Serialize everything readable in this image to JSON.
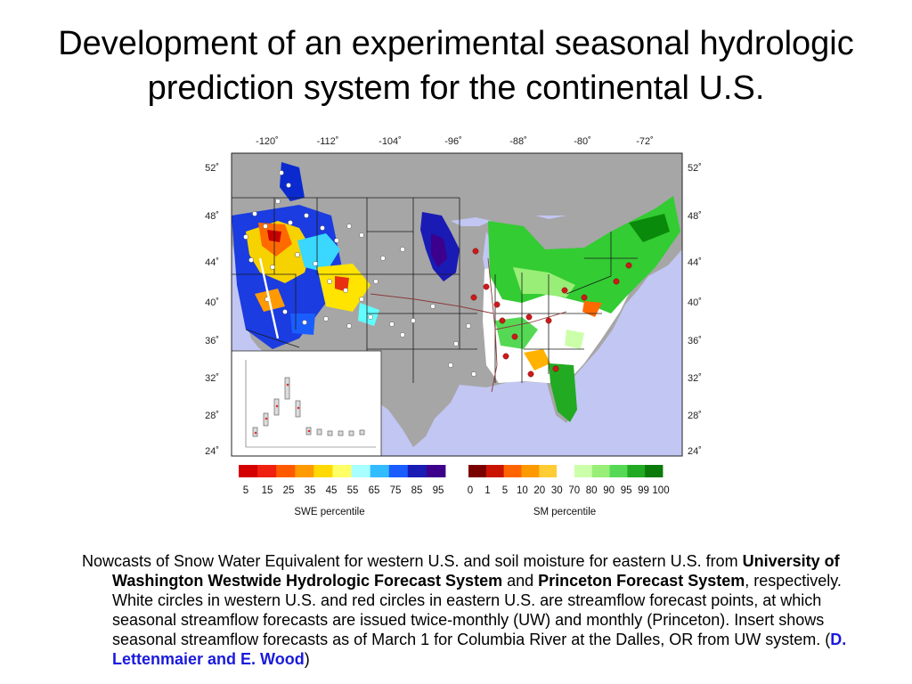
{
  "slide": {
    "title_line1": "Development of an experimental seasonal hydrologic",
    "title_line2": "prediction system for the continental U.S."
  },
  "map": {
    "lon_labels": [
      "-120˚",
      "-112˚",
      "-104˚",
      "-96˚",
      "-88˚",
      "-80˚",
      "-72˚"
    ],
    "lat_labels": [
      "52˚",
      "48˚",
      "44˚",
      "40˚",
      "36˚",
      "32˚",
      "28˚",
      "24˚"
    ],
    "colors": {
      "land_gray": "#a6a6a6",
      "ocean": "#c2c6f2",
      "western_red_circle": "#cc1a1a",
      "forecast_point_white": "#ffffff"
    }
  },
  "legends": {
    "swe": {
      "title": "SWE percentile",
      "ticks": [
        "5",
        "15",
        "25",
        "35",
        "45",
        "55",
        "65",
        "75",
        "85",
        "95"
      ],
      "colors": [
        "#d40000",
        "#f02010",
        "#ff5a00",
        "#ff9a00",
        "#ffd900",
        "#ffff66",
        "#a8ffff",
        "#33bbff",
        "#1a5dff",
        "#1a1ab4",
        "#3c008c"
      ]
    },
    "sm": {
      "title": "SM percentile",
      "ticks": [
        "0",
        "1",
        "5",
        "10",
        "20",
        "30",
        "70",
        "80",
        "90",
        "95",
        "99",
        "100"
      ],
      "colors": [
        "#7a0000",
        "#c81400",
        "#ff6400",
        "#ff9900",
        "#ffcc33",
        "#ffffff",
        "#ccffaa",
        "#99ee77",
        "#55d955",
        "#22aa22",
        "#0a7a0a"
      ]
    }
  },
  "caption": {
    "part1": "Nowcasts of Snow Water Equivalent for western U.S. and soil moisture for eastern U.S. from ",
    "bold1": "University of Washington Westwide Hydrologic Forecast System",
    "part2": " and ",
    "bold2": "Princeton Forecast System",
    "part3": ", respectively. White circles in western U.S. and red circles in eastern U.S. are streamflow forecast points, at which seasonal streamflow forecasts are issued twice-monthly (UW) and monthly (Princeton). Insert shows seasonal streamflow forecasts as of March 1 for Columbia River at the Dalles, OR from UW system. (",
    "credit": "D. Lettenmaier and E. Wood",
    "part4": ")"
  }
}
